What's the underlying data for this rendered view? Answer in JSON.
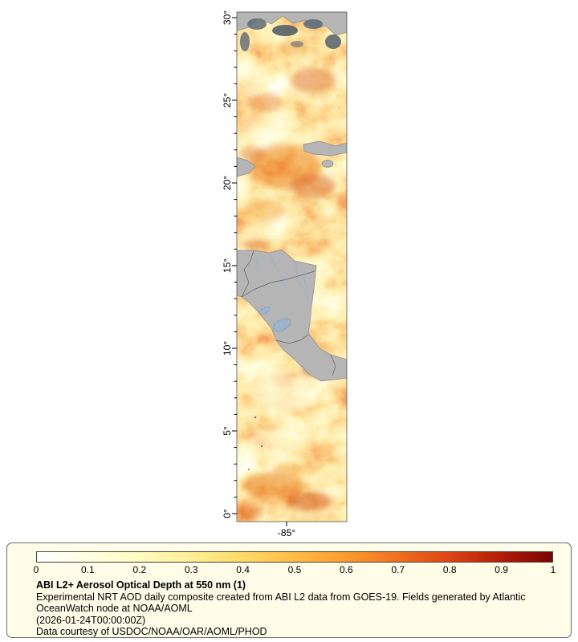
{
  "figure": {
    "map": {
      "y_axis": {
        "tick_labels": [
          "30°",
          "25°",
          "20°",
          "15°",
          "10°",
          "5°",
          "0°"
        ]
      },
      "x_axis": {
        "tick_labels": [
          "-85°"
        ]
      }
    },
    "legend": {
      "background": "#fffde8",
      "colorbar": {
        "min": 0,
        "max": 1,
        "tick_labels": [
          "0",
          "0.1",
          "0.2",
          "0.3",
          "0.4",
          "0.5",
          "0.6",
          "0.7",
          "0.8",
          "0.9",
          "1"
        ],
        "colors": [
          "#ffffff",
          "#ffffe2",
          "#fffbc0",
          "#ffee96",
          "#ffd967",
          "#ffbc45",
          "#fb9a2e",
          "#f0701f",
          "#de4414",
          "#b31c09",
          "#7a0403"
        ]
      },
      "title": "ABI L2+ Aerosol Optical Depth at 550 nm (1)",
      "description": "Experimental NRT AOD daily composite created from ABI L2 data from GOES-19. Fields generated by Atlantic OceanWatch node at NOAA/AOML",
      "timestamp": "(2026-01-24T00:00:00Z)",
      "credit": "Data courtesy of USDOC/NOAA/OAR/AOML/PHOD"
    }
  },
  "chart_data": {
    "type": "heatmap",
    "title": "ABI L2+ Aerosol Optical Depth at 550 nm (1)",
    "variable": "Aerosol Optical Depth at 550 nm",
    "y_axis_ticks": [
      "0°",
      "5°",
      "10°",
      "15°",
      "20°",
      "25°",
      "30°"
    ],
    "x_axis_ticks": [
      "-85°"
    ],
    "colorbar_range": [
      0,
      1
    ],
    "colorbar_ticks": [
      0,
      0.1,
      0.2,
      0.3,
      0.4,
      0.5,
      0.6,
      0.7,
      0.8,
      0.9,
      1
    ],
    "legend_position": "bottom"
  }
}
